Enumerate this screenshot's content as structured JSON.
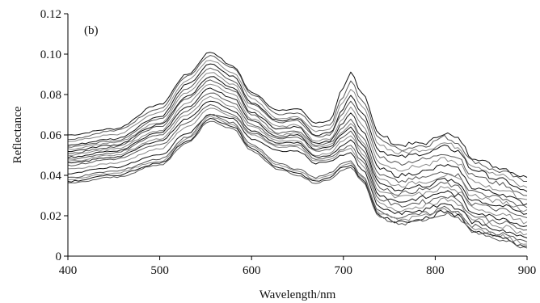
{
  "chart_data": {
    "type": "line",
    "panel_label": "(b)",
    "title": "",
    "xlabel": "Wavelength/nm",
    "ylabel": "Reflectance",
    "xlim": [
      400,
      900
    ],
    "ylim": [
      0,
      0.12
    ],
    "xticks": [
      400,
      500,
      600,
      700,
      800,
      900
    ],
    "yticks": [
      0,
      0.02,
      0.04,
      0.06,
      0.08,
      0.1,
      0.12
    ],
    "ytick_labels": [
      "0",
      "0.02",
      "0.04",
      "0.06",
      "0.08",
      "0.10",
      "0.12"
    ],
    "grid": false,
    "legend": "none",
    "line_colors": [
      "#111111",
      "#555555",
      "#888888"
    ],
    "x": [
      400,
      450,
      500,
      530,
      555,
      580,
      600,
      630,
      650,
      670,
      685,
      700,
      708,
      720,
      740,
      760,
      790,
      810,
      825,
      840,
      870,
      900
    ],
    "series": [
      {
        "values": [
          0.06,
          0.063,
          0.075,
          0.09,
          0.101,
          0.094,
          0.081,
          0.072,
          0.073,
          0.066,
          0.067,
          0.083,
          0.091,
          0.081,
          0.06,
          0.055,
          0.056,
          0.061,
          0.058,
          0.049,
          0.044,
          0.039
        ]
      },
      {
        "values": [
          0.058,
          0.062,
          0.073,
          0.089,
          0.099,
          0.093,
          0.08,
          0.07,
          0.071,
          0.064,
          0.065,
          0.079,
          0.087,
          0.077,
          0.058,
          0.053,
          0.055,
          0.059,
          0.056,
          0.047,
          0.042,
          0.037
        ]
      },
      {
        "values": [
          0.057,
          0.06,
          0.071,
          0.087,
          0.097,
          0.091,
          0.078,
          0.068,
          0.069,
          0.062,
          0.063,
          0.076,
          0.083,
          0.074,
          0.055,
          0.051,
          0.053,
          0.056,
          0.054,
          0.045,
          0.04,
          0.034
        ]
      },
      {
        "values": [
          0.055,
          0.058,
          0.069,
          0.085,
          0.095,
          0.089,
          0.076,
          0.067,
          0.068,
          0.06,
          0.061,
          0.073,
          0.08,
          0.071,
          0.052,
          0.049,
          0.051,
          0.054,
          0.052,
          0.043,
          0.038,
          0.032
        ]
      },
      {
        "values": [
          0.054,
          0.057,
          0.068,
          0.083,
          0.093,
          0.087,
          0.075,
          0.066,
          0.067,
          0.059,
          0.06,
          0.071,
          0.077,
          0.068,
          0.049,
          0.046,
          0.048,
          0.051,
          0.049,
          0.04,
          0.036,
          0.03
        ]
      },
      {
        "values": [
          0.053,
          0.056,
          0.066,
          0.081,
          0.091,
          0.085,
          0.073,
          0.064,
          0.065,
          0.057,
          0.058,
          0.068,
          0.074,
          0.065,
          0.046,
          0.043,
          0.045,
          0.048,
          0.046,
          0.037,
          0.033,
          0.028
        ]
      },
      {
        "values": [
          0.052,
          0.055,
          0.065,
          0.079,
          0.089,
          0.083,
          0.071,
          0.063,
          0.064,
          0.056,
          0.057,
          0.066,
          0.071,
          0.062,
          0.043,
          0.04,
          0.042,
          0.045,
          0.043,
          0.034,
          0.031,
          0.026
        ]
      },
      {
        "values": [
          0.051,
          0.054,
          0.064,
          0.078,
          0.087,
          0.082,
          0.07,
          0.061,
          0.062,
          0.055,
          0.056,
          0.064,
          0.068,
          0.059,
          0.04,
          0.037,
          0.039,
          0.042,
          0.04,
          0.032,
          0.029,
          0.024
        ]
      },
      {
        "values": [
          0.05,
          0.053,
          0.062,
          0.076,
          0.085,
          0.08,
          0.068,
          0.06,
          0.061,
          0.054,
          0.055,
          0.062,
          0.066,
          0.057,
          0.038,
          0.035,
          0.037,
          0.04,
          0.038,
          0.03,
          0.027,
          0.023
        ]
      },
      {
        "values": [
          0.049,
          0.052,
          0.061,
          0.074,
          0.083,
          0.078,
          0.067,
          0.059,
          0.06,
          0.053,
          0.054,
          0.061,
          0.064,
          0.055,
          0.036,
          0.033,
          0.035,
          0.038,
          0.036,
          0.028,
          0.025,
          0.021
        ]
      },
      {
        "values": [
          0.048,
          0.051,
          0.06,
          0.072,
          0.081,
          0.076,
          0.065,
          0.058,
          0.059,
          0.052,
          0.053,
          0.059,
          0.062,
          0.053,
          0.034,
          0.031,
          0.033,
          0.036,
          0.034,
          0.026,
          0.023,
          0.019
        ]
      },
      {
        "values": [
          0.047,
          0.05,
          0.058,
          0.07,
          0.079,
          0.074,
          0.064,
          0.057,
          0.057,
          0.05,
          0.051,
          0.057,
          0.06,
          0.051,
          0.032,
          0.029,
          0.031,
          0.034,
          0.032,
          0.024,
          0.021,
          0.017
        ]
      },
      {
        "values": [
          0.046,
          0.049,
          0.057,
          0.068,
          0.077,
          0.072,
          0.062,
          0.056,
          0.056,
          0.049,
          0.05,
          0.055,
          0.058,
          0.049,
          0.03,
          0.027,
          0.029,
          0.032,
          0.03,
          0.022,
          0.019,
          0.015
        ]
      },
      {
        "values": [
          0.045,
          0.048,
          0.055,
          0.066,
          0.075,
          0.07,
          0.061,
          0.055,
          0.055,
          0.048,
          0.049,
          0.053,
          0.055,
          0.047,
          0.028,
          0.025,
          0.027,
          0.03,
          0.028,
          0.02,
          0.017,
          0.013
        ]
      },
      {
        "values": [
          0.043,
          0.046,
          0.053,
          0.064,
          0.073,
          0.069,
          0.06,
          0.054,
          0.054,
          0.047,
          0.048,
          0.052,
          0.053,
          0.045,
          0.026,
          0.023,
          0.025,
          0.028,
          0.026,
          0.018,
          0.015,
          0.011
        ]
      },
      {
        "values": [
          0.041,
          0.044,
          0.05,
          0.061,
          0.07,
          0.068,
          0.058,
          0.052,
          0.052,
          0.046,
          0.047,
          0.05,
          0.051,
          0.043,
          0.024,
          0.021,
          0.023,
          0.026,
          0.024,
          0.017,
          0.013,
          0.009
        ]
      },
      {
        "values": [
          0.039,
          0.042,
          0.048,
          0.059,
          0.07,
          0.066,
          0.055,
          0.046,
          0.043,
          0.039,
          0.041,
          0.046,
          0.047,
          0.04,
          0.022,
          0.019,
          0.021,
          0.024,
          0.022,
          0.015,
          0.011,
          0.007
        ]
      },
      {
        "values": [
          0.038,
          0.041,
          0.047,
          0.058,
          0.069,
          0.065,
          0.054,
          0.045,
          0.042,
          0.038,
          0.04,
          0.045,
          0.046,
          0.039,
          0.021,
          0.018,
          0.02,
          0.023,
          0.021,
          0.014,
          0.01,
          0.006
        ]
      },
      {
        "values": [
          0.037,
          0.04,
          0.046,
          0.057,
          0.068,
          0.064,
          0.053,
          0.044,
          0.041,
          0.037,
          0.039,
          0.044,
          0.045,
          0.038,
          0.02,
          0.017,
          0.019,
          0.022,
          0.02,
          0.013,
          0.009,
          0.005
        ]
      },
      {
        "values": [
          0.036,
          0.039,
          0.045,
          0.056,
          0.067,
          0.063,
          0.052,
          0.043,
          0.04,
          0.036,
          0.038,
          0.043,
          0.044,
          0.037,
          0.019,
          0.016,
          0.018,
          0.021,
          0.019,
          0.012,
          0.008,
          0.004
        ]
      }
    ]
  }
}
